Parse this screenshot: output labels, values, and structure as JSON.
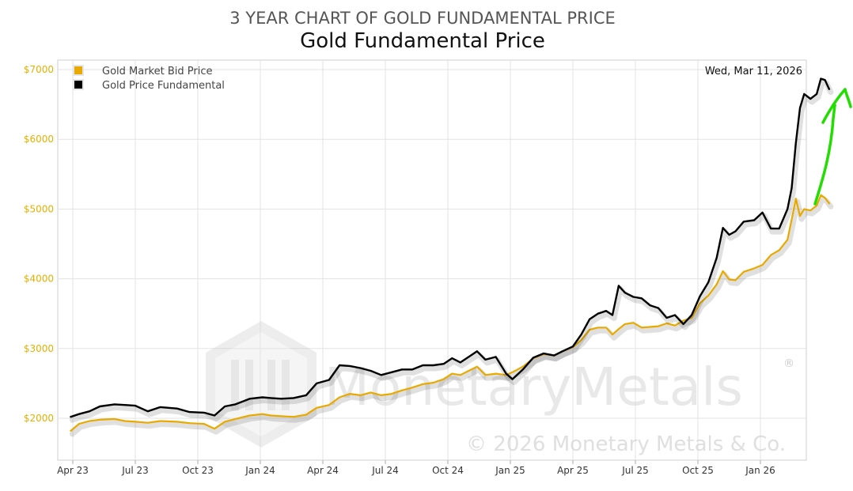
{
  "colors": {
    "market": "#e8aa00",
    "fundamental": "#000000",
    "arrow": "#22dd00",
    "ytick": "#e8b000"
  },
  "watermark": {
    "brand": "MonetaryMetals",
    "registered": "®",
    "copyright": "© 2026 Monetary Metals & Co.",
    "logo_icon": "monetary-metals-logo-icon"
  },
  "annotation": {
    "icon": "green-up-arrow-icon"
  },
  "chart_data": {
    "type": "line",
    "title": "3 YEAR CHART OF GOLD FUNDAMENTAL PRICE",
    "subtitle": "Gold Fundamental Price",
    "date_label": "Wed, Mar 11, 2026",
    "legend_position": "top-left",
    "grid": true,
    "xlabel": "",
    "ylabel": "",
    "x_range": [
      0,
      36.4
    ],
    "ylim": [
      1500,
      7100
    ],
    "x_ticks": [
      {
        "label": "Apr 23",
        "x": 0
      },
      {
        "label": "Jul 23",
        "x": 3
      },
      {
        "label": "Oct 23",
        "x": 6
      },
      {
        "label": "Jan 24",
        "x": 9
      },
      {
        "label": "Apr 24",
        "x": 12
      },
      {
        "label": "Jul 24",
        "x": 15
      },
      {
        "label": "Oct 24",
        "x": 18
      },
      {
        "label": "Jan 25",
        "x": 21
      },
      {
        "label": "Apr 25",
        "x": 24
      },
      {
        "label": "Jul 25",
        "x": 27
      },
      {
        "label": "Oct 25",
        "x": 30
      },
      {
        "label": "Jan 26",
        "x": 33
      }
    ],
    "y_ticks": [
      {
        "label": "$2000",
        "y": 2000
      },
      {
        "label": "$3000",
        "y": 3000
      },
      {
        "label": "$4000",
        "y": 4000
      },
      {
        "label": "$5000",
        "y": 5000
      },
      {
        "label": "$6000",
        "y": 6000
      },
      {
        "label": "$7000",
        "y": 7000
      }
    ],
    "series": [
      {
        "name": "Gold Market Bid Price",
        "key": "market",
        "points": [
          [
            -0.1,
            1820
          ],
          [
            0.3,
            1920
          ],
          [
            0.8,
            1960
          ],
          [
            1.3,
            1980
          ],
          [
            2.0,
            1990
          ],
          [
            2.5,
            1960
          ],
          [
            3.0,
            1950
          ],
          [
            3.6,
            1935
          ],
          [
            4.2,
            1960
          ],
          [
            5.0,
            1950
          ],
          [
            5.6,
            1930
          ],
          [
            6.3,
            1920
          ],
          [
            6.8,
            1850
          ],
          [
            7.3,
            1950
          ],
          [
            7.8,
            1990
          ],
          [
            8.5,
            2040
          ],
          [
            9.1,
            2060
          ],
          [
            9.5,
            2040
          ],
          [
            10.0,
            2030
          ],
          [
            10.6,
            2020
          ],
          [
            11.2,
            2050
          ],
          [
            11.7,
            2150
          ],
          [
            12.3,
            2190
          ],
          [
            12.8,
            2300
          ],
          [
            13.3,
            2350
          ],
          [
            13.8,
            2330
          ],
          [
            14.3,
            2370
          ],
          [
            14.8,
            2330
          ],
          [
            15.3,
            2350
          ],
          [
            15.8,
            2400
          ],
          [
            16.3,
            2440
          ],
          [
            16.8,
            2490
          ],
          [
            17.3,
            2510
          ],
          [
            17.8,
            2560
          ],
          [
            18.2,
            2640
          ],
          [
            18.6,
            2620
          ],
          [
            19.0,
            2680
          ],
          [
            19.4,
            2740
          ],
          [
            19.8,
            2620
          ],
          [
            20.3,
            2640
          ],
          [
            20.8,
            2620
          ],
          [
            21.1,
            2660
          ],
          [
            21.6,
            2740
          ],
          [
            22.1,
            2860
          ],
          [
            22.6,
            2920
          ],
          [
            23.1,
            2900
          ],
          [
            23.5,
            2960
          ],
          [
            24.0,
            3020
          ],
          [
            24.4,
            3120
          ],
          [
            24.8,
            3270
          ],
          [
            25.2,
            3300
          ],
          [
            25.6,
            3300
          ],
          [
            25.9,
            3200
          ],
          [
            26.2,
            3280
          ],
          [
            26.5,
            3350
          ],
          [
            26.9,
            3370
          ],
          [
            27.3,
            3300
          ],
          [
            27.7,
            3310
          ],
          [
            28.1,
            3320
          ],
          [
            28.5,
            3360
          ],
          [
            28.9,
            3330
          ],
          [
            29.3,
            3400
          ],
          [
            29.7,
            3440
          ],
          [
            30.1,
            3650
          ],
          [
            30.5,
            3760
          ],
          [
            30.9,
            3920
          ],
          [
            31.2,
            4110
          ],
          [
            31.5,
            3990
          ],
          [
            31.8,
            3980
          ],
          [
            32.2,
            4100
          ],
          [
            32.7,
            4150
          ],
          [
            33.1,
            4200
          ],
          [
            33.5,
            4340
          ],
          [
            33.9,
            4410
          ],
          [
            34.3,
            4560
          ],
          [
            34.5,
            4850
          ],
          [
            34.7,
            5150
          ],
          [
            34.9,
            4900
          ],
          [
            35.1,
            5000
          ],
          [
            35.4,
            4980
          ],
          [
            35.7,
            5050
          ],
          [
            35.9,
            5200
          ],
          [
            36.1,
            5160
          ],
          [
            36.3,
            5080
          ]
        ]
      },
      {
        "name": "Gold Price Fundamental",
        "key": "fundamental",
        "points": [
          [
            -0.1,
            2020
          ],
          [
            0.3,
            2060
          ],
          [
            0.8,
            2100
          ],
          [
            1.3,
            2170
          ],
          [
            2.0,
            2200
          ],
          [
            2.5,
            2190
          ],
          [
            3.0,
            2180
          ],
          [
            3.6,
            2100
          ],
          [
            4.2,
            2160
          ],
          [
            5.0,
            2140
          ],
          [
            5.6,
            2090
          ],
          [
            6.3,
            2080
          ],
          [
            6.8,
            2040
          ],
          [
            7.3,
            2170
          ],
          [
            7.8,
            2200
          ],
          [
            8.5,
            2280
          ],
          [
            9.1,
            2300
          ],
          [
            9.5,
            2290
          ],
          [
            10.0,
            2280
          ],
          [
            10.6,
            2290
          ],
          [
            11.2,
            2330
          ],
          [
            11.7,
            2500
          ],
          [
            12.3,
            2550
          ],
          [
            12.8,
            2760
          ],
          [
            13.3,
            2750
          ],
          [
            13.8,
            2720
          ],
          [
            14.3,
            2680
          ],
          [
            14.8,
            2620
          ],
          [
            15.3,
            2660
          ],
          [
            15.8,
            2700
          ],
          [
            16.3,
            2700
          ],
          [
            16.8,
            2760
          ],
          [
            17.3,
            2760
          ],
          [
            17.8,
            2780
          ],
          [
            18.2,
            2860
          ],
          [
            18.6,
            2800
          ],
          [
            19.0,
            2880
          ],
          [
            19.4,
            2960
          ],
          [
            19.8,
            2840
          ],
          [
            20.3,
            2880
          ],
          [
            20.8,
            2640
          ],
          [
            21.1,
            2560
          ],
          [
            21.6,
            2700
          ],
          [
            22.1,
            2870
          ],
          [
            22.6,
            2930
          ],
          [
            23.1,
            2900
          ],
          [
            23.5,
            2960
          ],
          [
            24.0,
            3030
          ],
          [
            24.4,
            3200
          ],
          [
            24.8,
            3420
          ],
          [
            25.2,
            3500
          ],
          [
            25.6,
            3540
          ],
          [
            25.9,
            3480
          ],
          [
            26.2,
            3900
          ],
          [
            26.5,
            3800
          ],
          [
            26.9,
            3740
          ],
          [
            27.3,
            3720
          ],
          [
            27.7,
            3620
          ],
          [
            28.1,
            3580
          ],
          [
            28.5,
            3440
          ],
          [
            28.9,
            3480
          ],
          [
            29.3,
            3350
          ],
          [
            29.7,
            3480
          ],
          [
            30.1,
            3750
          ],
          [
            30.5,
            3950
          ],
          [
            30.9,
            4300
          ],
          [
            31.2,
            4730
          ],
          [
            31.5,
            4630
          ],
          [
            31.8,
            4680
          ],
          [
            32.2,
            4820
          ],
          [
            32.7,
            4840
          ],
          [
            33.1,
            4950
          ],
          [
            33.5,
            4720
          ],
          [
            33.9,
            4720
          ],
          [
            34.3,
            5000
          ],
          [
            34.5,
            5300
          ],
          [
            34.7,
            5950
          ],
          [
            34.9,
            6450
          ],
          [
            35.1,
            6650
          ],
          [
            35.4,
            6580
          ],
          [
            35.7,
            6650
          ],
          [
            35.9,
            6870
          ],
          [
            36.1,
            6850
          ],
          [
            36.3,
            6720
          ]
        ]
      }
    ]
  }
}
